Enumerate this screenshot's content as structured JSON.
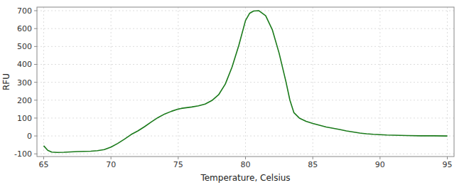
{
  "chart_data": {
    "type": "line",
    "xlabel": "Temperature, Celsius",
    "ylabel": "RFU",
    "x": [
      65.0,
      65.3,
      65.6,
      66.0,
      66.5,
      67.0,
      67.5,
      68.0,
      68.5,
      69.0,
      69.5,
      70.0,
      70.5,
      71.0,
      71.5,
      72.0,
      72.5,
      73.0,
      73.5,
      74.0,
      74.5,
      75.0,
      75.3,
      75.6,
      76.0,
      76.5,
      77.0,
      77.5,
      78.0,
      78.5,
      79.0,
      79.5,
      80.0,
      80.3,
      80.6,
      81.0,
      81.5,
      82.0,
      82.5,
      83.0,
      83.3,
      83.6,
      84.0,
      84.5,
      85.0,
      85.5,
      86.0,
      86.5,
      87.0,
      87.5,
      88.0,
      88.5,
      89.0,
      89.5,
      90.0,
      90.5,
      91.0,
      92.0,
      93.0,
      94.0,
      95.0
    ],
    "values": [
      -55,
      -80,
      -90,
      -92,
      -91,
      -89,
      -87,
      -86,
      -85,
      -82,
      -76,
      -62,
      -42,
      -18,
      8,
      28,
      52,
      78,
      103,
      123,
      138,
      150,
      155,
      158,
      162,
      168,
      178,
      198,
      230,
      290,
      385,
      505,
      645,
      685,
      698,
      700,
      672,
      592,
      462,
      305,
      200,
      130,
      100,
      82,
      70,
      60,
      50,
      43,
      36,
      28,
      22,
      16,
      12,
      9,
      7,
      5,
      4,
      2,
      1,
      1,
      0
    ],
    "color": "#1a7a1a",
    "xlim": [
      64.5,
      95.5
    ],
    "ylim": [
      -115,
      720
    ],
    "xticks": [
      65,
      70,
      75,
      80,
      85,
      90,
      95
    ],
    "yticks": [
      -100,
      0,
      100,
      200,
      300,
      400,
      500,
      600,
      700
    ],
    "grid": true
  }
}
